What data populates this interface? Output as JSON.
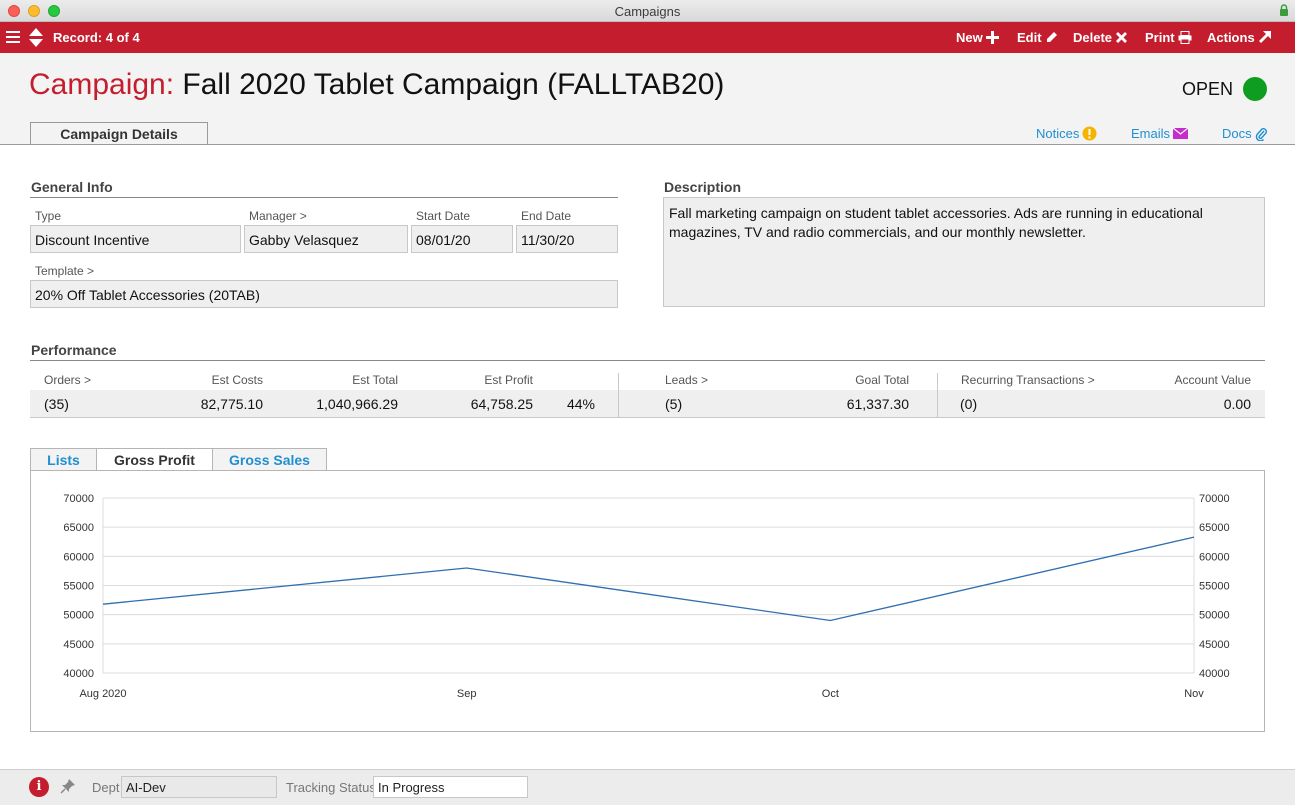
{
  "window": {
    "title": "Campaigns"
  },
  "toolbar": {
    "record": "Record: 4 of 4",
    "new": "New",
    "edit": "Edit",
    "delete": "Delete",
    "print": "Print",
    "actions": "Actions"
  },
  "header": {
    "label": "Campaign:",
    "name": "Fall 2020 Tablet Campaign  (FALLTAB20)",
    "status": "OPEN",
    "status_color": "#0f9d1f"
  },
  "tabs": {
    "main": "Campaign Details"
  },
  "links": {
    "notices": "Notices",
    "emails": "Emails",
    "docs": "Docs"
  },
  "general": {
    "heading": "General Info",
    "type_label": "Type",
    "type": "Discount Incentive",
    "manager_label": "Manager >",
    "manager": "Gabby Velasquez",
    "start_label": "Start Date",
    "start": "08/01/20",
    "end_label": "End Date",
    "end": "11/30/20",
    "template_label": "Template >",
    "template": "20% Off Tablet Accessories  (20TAB)"
  },
  "description": {
    "heading": "Description",
    "text": "Fall marketing campaign on student tablet accessories. Ads are running in educational magazines, TV and radio commercials, and our monthly newsletter."
  },
  "performance": {
    "heading": "Performance",
    "orders_label": "Orders >",
    "orders": "(35)",
    "est_costs_label": "Est Costs",
    "est_costs": "82,775.10",
    "est_total_label": "Est Total",
    "est_total": "1,040,966.29",
    "est_profit_label": "Est Profit",
    "est_profit": "64,758.25",
    "margin": "44%",
    "leads_label": "Leads >",
    "leads": "(5)",
    "goal_label": "Goal Total",
    "goal": "61,337.30",
    "recurring_label": "Recurring Transactions >",
    "recurring": "(0)",
    "account_label": "Account Value",
    "account": "0.00"
  },
  "chart_tabs": {
    "lists": "Lists",
    "gross_profit": "Gross Profit",
    "gross_sales": "Gross Sales"
  },
  "chart_data": {
    "type": "line",
    "categories": [
      "Aug 2020",
      "Sep",
      "Oct",
      "Nov"
    ],
    "series": [
      {
        "values": [
          51800,
          58000,
          49000,
          63300
        ]
      }
    ],
    "ylim": [
      40000,
      70000
    ],
    "yticks": [
      "70000",
      "65000",
      "60000",
      "55000",
      "50000",
      "45000",
      "40000"
    ],
    "dual_y_axis": true,
    "grid": true,
    "line_color": "#2f6fb0"
  },
  "footer": {
    "dept_label": "Dept",
    "dept": "AI-Dev",
    "tracking_label": "Tracking Status",
    "tracking": "In Progress"
  }
}
